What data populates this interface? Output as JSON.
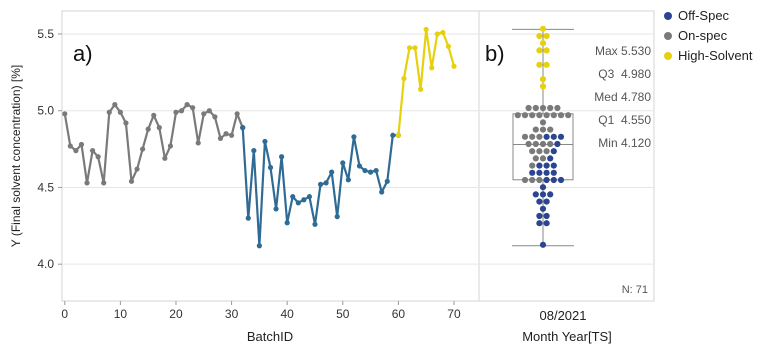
{
  "panel_a_label": "a)",
  "panel_b_label": "b)",
  "n_label": "N: 71",
  "legend": {
    "items": [
      {
        "label": "Off-Spec",
        "color": "#2b4590"
      },
      {
        "label": "On-spec",
        "color": "#7a7a7a"
      },
      {
        "label": "High-Solvent",
        "color": "#e6d10f"
      }
    ]
  },
  "colors": {
    "on_spec": "#7a7a7a",
    "off_spec_line": "#2f6b95",
    "off_spec_dot": "#2b4590",
    "high_solvent": "#e6d10f"
  },
  "chart_data": [
    {
      "type": "line",
      "panel": "a)",
      "xlabel": "BatchID",
      "ylabel": "Y (Final solvent concentration) [%]",
      "xlim": [
        -0.5,
        74.5
      ],
      "ylim": [
        3.76,
        5.65
      ],
      "xticks": [
        0,
        10,
        20,
        30,
        40,
        50,
        60,
        70
      ],
      "yticks": [
        4.0,
        4.5,
        5.0,
        5.5
      ],
      "ytick_labels": [
        "4.0",
        "4.5",
        "5.0",
        "5.5"
      ],
      "series": [
        {
          "name": "On-spec",
          "x": [
            0,
            1,
            2,
            3,
            4,
            5,
            6,
            7,
            8,
            9,
            10,
            11,
            12,
            13,
            14,
            15,
            16,
            17,
            18,
            19,
            20,
            21,
            22,
            23,
            24,
            25,
            26,
            27,
            28,
            29,
            30,
            31,
            32
          ],
          "y": [
            4.98,
            4.77,
            4.74,
            4.78,
            4.53,
            4.74,
            4.7,
            4.53,
            4.99,
            5.04,
            4.99,
            4.92,
            4.54,
            4.62,
            4.75,
            4.88,
            4.97,
            4.89,
            4.69,
            4.77,
            4.99,
            5.0,
            5.04,
            5.02,
            4.79,
            4.98,
            5.0,
            4.96,
            4.82,
            4.85,
            4.84,
            4.98,
            4.89
          ]
        },
        {
          "name": "Off-Spec",
          "x": [
            32,
            33,
            34,
            35,
            36,
            37,
            38,
            39,
            40,
            41,
            42,
            43,
            44,
            45,
            46,
            47,
            48,
            49,
            50,
            51,
            52,
            53,
            54,
            55,
            56,
            57,
            58,
            59,
            60
          ],
          "y": [
            4.89,
            4.3,
            4.74,
            4.12,
            4.8,
            4.63,
            4.36,
            4.7,
            4.27,
            4.44,
            4.4,
            4.42,
            4.44,
            4.26,
            4.52,
            4.53,
            4.6,
            4.31,
            4.66,
            4.55,
            4.83,
            4.64,
            4.61,
            4.6,
            4.61,
            4.47,
            4.54,
            4.84,
            4.84
          ]
        },
        {
          "name": "High-Solvent",
          "x": [
            60,
            61,
            62,
            63,
            64,
            65,
            66,
            67,
            68,
            69,
            70
          ],
          "y": [
            4.84,
            5.21,
            5.41,
            5.41,
            5.14,
            5.53,
            5.28,
            5.5,
            5.51,
            5.42,
            5.29
          ]
        }
      ]
    },
    {
      "type": "box",
      "panel": "b)",
      "xlabel": "Month Year[TS]",
      "categories": [
        "08/2021"
      ],
      "stats": {
        "max": 5.53,
        "q3": 4.98,
        "median": 4.78,
        "q1": 4.55,
        "min": 4.12,
        "n": 71
      },
      "stat_labels": [
        "Max 5.530",
        "Q3  4.980",
        "Med 4.780",
        "Q1  4.550",
        "Min 4.120"
      ]
    }
  ]
}
